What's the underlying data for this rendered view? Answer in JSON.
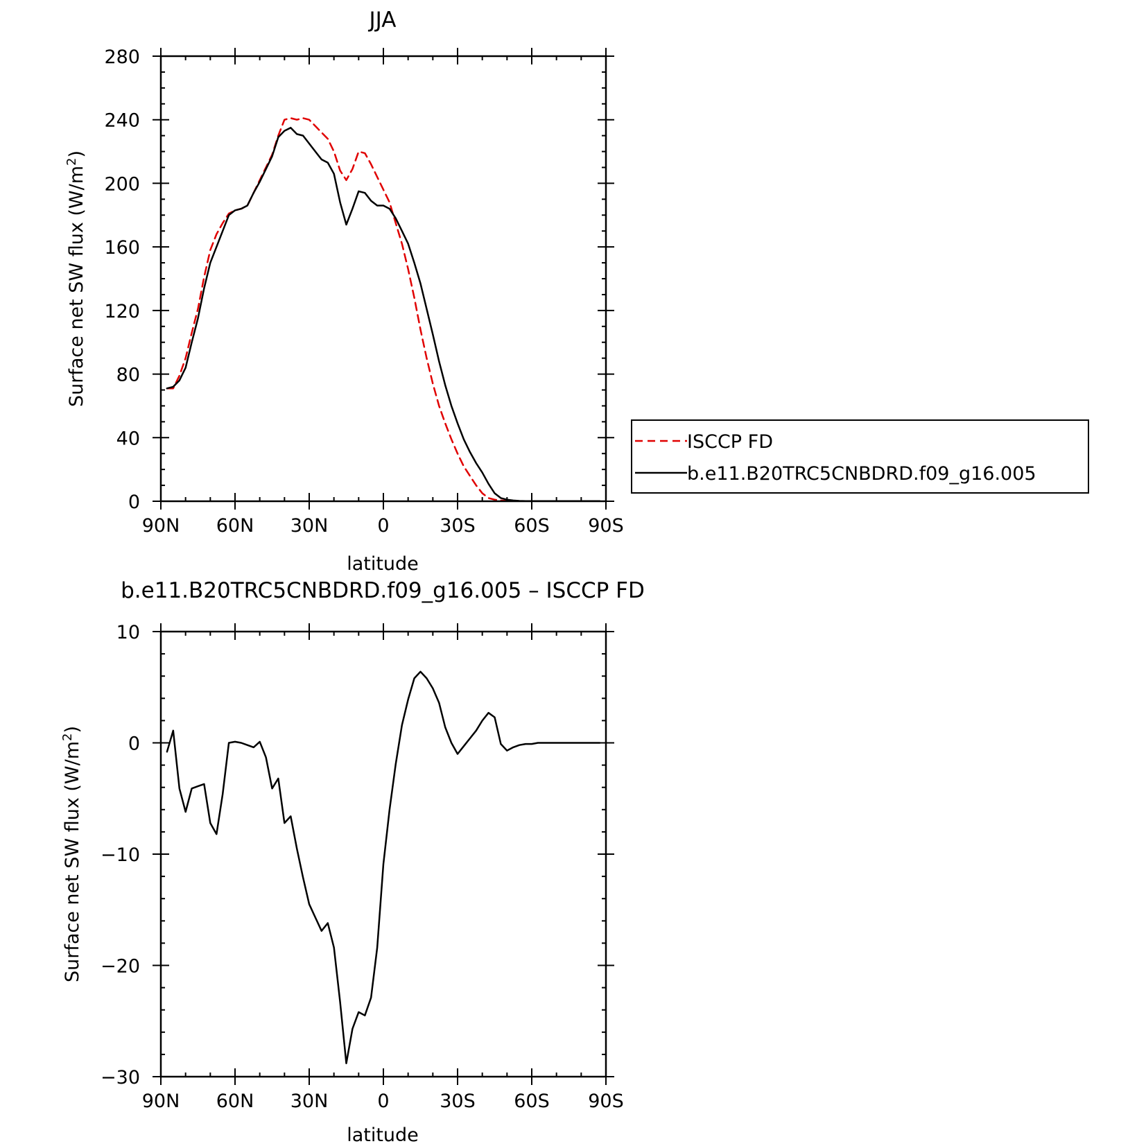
{
  "chart_data": [
    {
      "type": "line",
      "title": "JJA",
      "xlabel": "latitude",
      "ylabel": "Surface net SW flux (W/m",
      "ylabel_sup": "2",
      "ylabel_end": ")",
      "xlim": [
        90,
        -90
      ],
      "ylim": [
        0,
        280
      ],
      "x_ticks": [
        90,
        60,
        30,
        0,
        -30,
        -60,
        -90
      ],
      "x_tick_labels": [
        "90N",
        "60N",
        "30N",
        "0",
        "30S",
        "60S",
        "90S"
      ],
      "y_ticks": [
        0,
        40,
        80,
        120,
        160,
        200,
        240,
        280
      ],
      "y_tick_labels": [
        "0",
        "40",
        "80",
        "120",
        "160",
        "200",
        "240",
        "280"
      ],
      "grid": false,
      "legend_position": "right",
      "x": [
        87.5,
        85,
        82.5,
        80,
        77.5,
        75,
        72.5,
        70,
        67.5,
        65,
        62.5,
        60,
        57.5,
        55,
        52.5,
        50,
        47.5,
        45,
        42.5,
        40,
        37.5,
        35,
        32.5,
        30,
        27.5,
        25,
        22.5,
        20,
        17.5,
        15,
        12.5,
        10,
        7.5,
        5,
        2.5,
        0,
        -2.5,
        -5,
        -7.5,
        -10,
        -12.5,
        -15,
        -17.5,
        -20,
        -22.5,
        -25,
        -27.5,
        -30,
        -32.5,
        -35,
        -37.5,
        -40,
        -42.5,
        -45,
        -47.5,
        -50,
        -52.5,
        -55,
        -57.5,
        -60,
        -62.5,
        -65,
        -67.5,
        -70,
        -72.5,
        -75,
        -77.5,
        -80,
        -82.5,
        -85,
        -87.5
      ],
      "series": [
        {
          "name": "ISCCP FD",
          "color": "#e00000",
          "dash": "dashed",
          "values": [
            71,
            71,
            79,
            90,
            106,
            121,
            141,
            158,
            168,
            175,
            181,
            183,
            184,
            186,
            194,
            202,
            210,
            218,
            230,
            240,
            241,
            240,
            241,
            240,
            236,
            232,
            228,
            220,
            208,
            202,
            209,
            220,
            219,
            212,
            204,
            196,
            188,
            175,
            162,
            146,
            128,
            108,
            90,
            74,
            60,
            49,
            39,
            30,
            22,
            16,
            10,
            5,
            2,
            1,
            0.5,
            0.2,
            0.1,
            0.1,
            0.1,
            0.1,
            0.1,
            0.1,
            0.1,
            0.1,
            0.1,
            0.1,
            0.1,
            0.1,
            0.1,
            0.1,
            0.1
          ]
        },
        {
          "name": "b.e11.B20TRC5CNBDRD.f09_g16.005",
          "color": "#000000",
          "dash": "solid",
          "values": [
            71,
            72,
            76,
            84,
            100,
            115,
            134,
            150,
            160,
            170,
            180,
            183,
            184,
            186,
            194,
            201,
            209,
            217,
            229,
            233,
            235,
            231,
            230,
            225,
            220,
            215,
            213,
            206,
            188,
            174,
            184,
            195,
            194,
            189,
            186,
            186,
            184,
            178,
            170,
            162,
            150,
            137,
            121,
            105,
            88,
            73,
            60,
            49,
            39,
            31,
            24,
            18,
            11,
            5,
            2,
            1,
            0.5,
            0.2,
            0.1,
            0.1,
            0.1,
            0.1,
            0.1,
            0.1,
            0.1,
            0.1,
            0.1,
            0.1,
            0.1,
            0.1,
            0.1
          ]
        }
      ]
    },
    {
      "type": "line",
      "title": "b.e11.B20TRC5CNBDRD.f09_g16.005 – ISCCP FD",
      "xlabel": "latitude",
      "ylabel": "Surface net SW flux (W/m",
      "ylabel_sup": "2",
      "ylabel_end": ")",
      "xlim": [
        90,
        -90
      ],
      "ylim": [
        -30,
        10
      ],
      "x_ticks": [
        90,
        60,
        30,
        0,
        -30,
        -60,
        -90
      ],
      "x_tick_labels": [
        "90N",
        "60N",
        "30N",
        "0",
        "30S",
        "60S",
        "90S"
      ],
      "y_ticks": [
        -30,
        -20,
        -10,
        0,
        10
      ],
      "y_tick_labels": [
        "−30",
        "−20",
        "−10",
        "0",
        "10"
      ],
      "grid": false,
      "x": [
        87.5,
        85,
        82.5,
        80,
        77.5,
        75,
        72.5,
        70,
        67.5,
        65,
        62.5,
        60,
        57.5,
        55,
        52.5,
        50,
        47.5,
        45,
        42.5,
        40,
        37.5,
        35,
        32.5,
        30,
        27.5,
        25,
        22.5,
        20,
        17.5,
        15,
        12.5,
        10,
        7.5,
        5,
        2.5,
        0,
        -2.5,
        -5,
        -7.5,
        -10,
        -12.5,
        -15,
        -17.5,
        -20,
        -22.5,
        -25,
        -27.5,
        -30,
        -32.5,
        -35,
        -37.5,
        -40,
        -42.5,
        -45,
        -47.5,
        -50,
        -52.5,
        -55,
        -57.5,
        -60,
        -62.5,
        -65,
        -67.5,
        -70,
        -72.5,
        -75,
        -77.5,
        -80,
        -82.5,
        -85,
        -87.5
      ],
      "series": [
        {
          "color": "#000000",
          "dash": "solid",
          "values": [
            -0.8,
            1.1,
            -4.1,
            -6.2,
            -4.1,
            -3.9,
            -3.7,
            -7.2,
            -8.2,
            -4.6,
            0.0,
            0.1,
            0.0,
            -0.2,
            -0.4,
            0.1,
            -1.3,
            -4.1,
            -3.2,
            -7.2,
            -6.6,
            -9.5,
            -12.1,
            -14.5,
            -15.7,
            -16.9,
            -16.2,
            -18.4,
            -23.3,
            -28.8,
            -25.7,
            -24.2,
            -24.5,
            -22.9,
            -18.4,
            -10.9,
            -6.0,
            -1.9,
            1.6,
            3.9,
            5.8,
            6.4,
            5.8,
            4.9,
            3.6,
            1.4,
            0.0,
            -1.0,
            -0.3,
            0.4,
            1.1,
            2.0,
            2.7,
            2.3,
            -0.1,
            -0.7,
            -0.4,
            -0.2,
            -0.1,
            -0.1,
            0.0,
            0.0,
            0.0,
            0.0,
            0.0,
            0.0,
            0.0,
            0.0,
            0.0,
            0.0,
            0.0
          ]
        }
      ]
    }
  ]
}
